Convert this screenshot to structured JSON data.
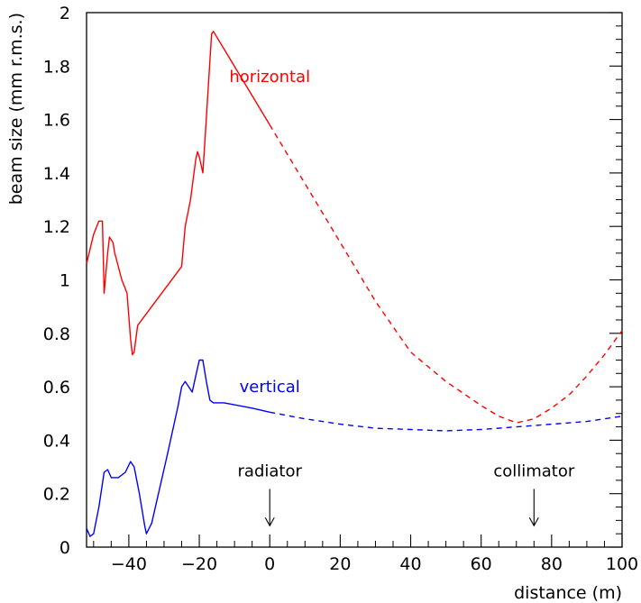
{
  "chart_data": {
    "type": "line",
    "title": "",
    "xlabel": "distance (m)",
    "ylabel": "beam size (mm r.m.s.)",
    "xlim": [
      -52,
      100
    ],
    "ylim": [
      0,
      2
    ],
    "xticks": [
      -40,
      -20,
      0,
      20,
      40,
      60,
      80,
      100
    ],
    "xtick_labels": [
      "−40",
      "−20",
      "0",
      "20",
      "40",
      "60",
      "80",
      "100"
    ],
    "yticks": [
      0,
      0.2,
      0.4,
      0.6,
      0.8,
      1,
      1.2,
      1.4,
      1.6,
      1.8,
      2
    ],
    "ytick_labels": [
      "0",
      "0.2",
      "0.4",
      "0.6",
      "0.8",
      "1",
      "1.2",
      "1.4",
      "1.6",
      "1.8",
      "2"
    ],
    "grid": false,
    "series": [
      {
        "name": "horizontal",
        "color": "#ff0000",
        "solid": [
          [
            -52,
            1.06
          ],
          [
            -50,
            1.17
          ],
          [
            -48.5,
            1.22
          ],
          [
            -47.5,
            1.22
          ],
          [
            -47,
            0.95
          ],
          [
            -46,
            1.1
          ],
          [
            -45.5,
            1.16
          ],
          [
            -44.5,
            1.14
          ],
          [
            -44,
            1.1
          ],
          [
            -42,
            1.0
          ],
          [
            -40.5,
            0.95
          ],
          [
            -39.5,
            0.78
          ],
          [
            -39,
            0.72
          ],
          [
            -38.5,
            0.73
          ],
          [
            -37.5,
            0.83
          ],
          [
            -25,
            1.05
          ],
          [
            -24,
            1.2
          ],
          [
            -22.5,
            1.3
          ],
          [
            -21,
            1.45
          ],
          [
            -20.5,
            1.48
          ],
          [
            -20,
            1.46
          ],
          [
            -19,
            1.4
          ],
          [
            -18.5,
            1.5
          ],
          [
            -16.5,
            1.92
          ],
          [
            -16,
            1.93
          ],
          [
            0,
            1.58
          ]
        ],
        "dashed": [
          [
            0,
            1.58
          ],
          [
            10,
            1.36
          ],
          [
            20,
            1.14
          ],
          [
            30,
            0.92
          ],
          [
            40,
            0.73
          ],
          [
            50,
            0.62
          ],
          [
            60,
            0.53
          ],
          [
            65,
            0.49
          ],
          [
            70,
            0.465
          ],
          [
            75,
            0.48
          ],
          [
            80,
            0.52
          ],
          [
            85,
            0.57
          ],
          [
            90,
            0.64
          ],
          [
            95,
            0.72
          ],
          [
            100,
            0.81
          ]
        ]
      },
      {
        "name": "vertical",
        "color": "#0000ff",
        "solid": [
          [
            -52,
            0.07
          ],
          [
            -51,
            0.04
          ],
          [
            -50,
            0.05
          ],
          [
            -48.5,
            0.15
          ],
          [
            -47,
            0.28
          ],
          [
            -46,
            0.29
          ],
          [
            -45,
            0.26
          ],
          [
            -43,
            0.26
          ],
          [
            -41,
            0.28
          ],
          [
            -39.5,
            0.32
          ],
          [
            -38.5,
            0.3
          ],
          [
            -37,
            0.2
          ],
          [
            -35.5,
            0.08
          ],
          [
            -35,
            0.05
          ],
          [
            -33.5,
            0.09
          ],
          [
            -29,
            0.35
          ],
          [
            -26,
            0.53
          ],
          [
            -25,
            0.6
          ],
          [
            -24,
            0.62
          ],
          [
            -22.5,
            0.59
          ],
          [
            -22,
            0.58
          ],
          [
            -21,
            0.64
          ],
          [
            -20,
            0.7
          ],
          [
            -19,
            0.7
          ],
          [
            -18,
            0.62
          ],
          [
            -17,
            0.55
          ],
          [
            -16,
            0.54
          ],
          [
            -13,
            0.54
          ],
          [
            -5,
            0.52
          ],
          [
            0,
            0.505
          ]
        ],
        "dashed": [
          [
            0,
            0.505
          ],
          [
            10,
            0.48
          ],
          [
            20,
            0.46
          ],
          [
            30,
            0.445
          ],
          [
            40,
            0.44
          ],
          [
            50,
            0.435
          ],
          [
            60,
            0.44
          ],
          [
            70,
            0.45
          ],
          [
            80,
            0.46
          ],
          [
            90,
            0.47
          ],
          [
            100,
            0.49
          ]
        ]
      }
    ],
    "annotations": [
      {
        "text": "horizontal",
        "color": "#ff0000",
        "x": 0,
        "y": 1.74
      },
      {
        "text": "vertical",
        "color": "#0000ff",
        "x": 0,
        "y": 0.58
      },
      {
        "text": "radiator",
        "color": "#000000",
        "x": 0,
        "y": 0.265,
        "arrow_to": 0.08
      },
      {
        "text": "collimator",
        "color": "#000000",
        "x": 75,
        "y": 0.265,
        "arrow_to": 0.08
      }
    ]
  }
}
